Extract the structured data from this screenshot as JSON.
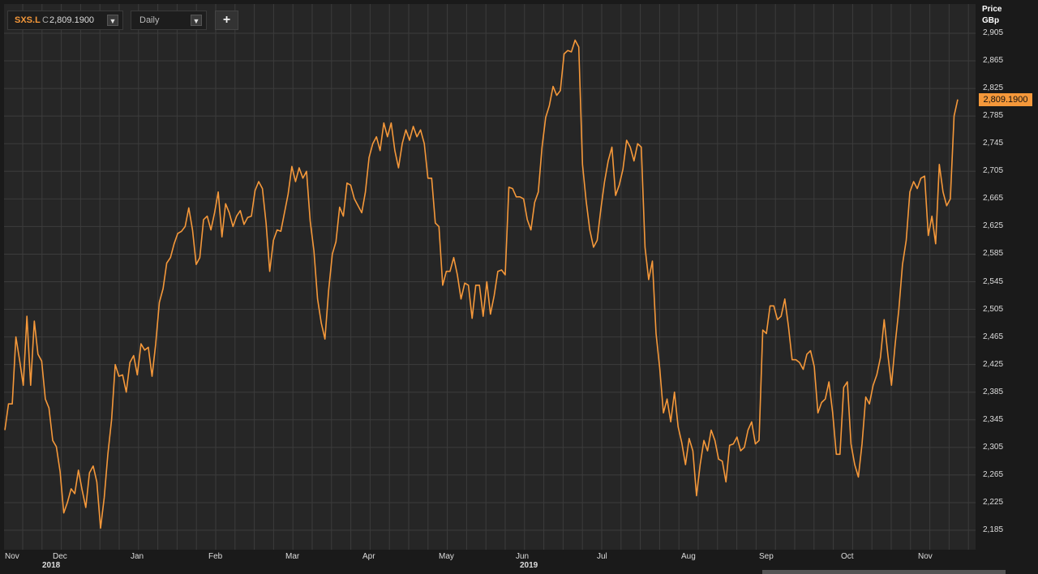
{
  "toolbar": {
    "symbol": "SXS.L",
    "close_prefix": "C",
    "last_value": "2,809.1900",
    "period": "Daily",
    "add_label": "+"
  },
  "axis": {
    "price_label": "Price",
    "unit_label": "GBp",
    "last_price_tag": "2,809.1900"
  },
  "colors": {
    "line": "#f5983a",
    "background": "#262626",
    "grid": "#3c3c3c"
  },
  "icons": {
    "dropdown": "triangle-down-icon",
    "add": "plus-icon"
  },
  "chart_data": {
    "type": "line",
    "title": "",
    "xlabel": "",
    "ylabel": "Price GBp",
    "ylim": [
      2165,
      2925
    ],
    "y_ticks": [
      "2,185",
      "2,225",
      "2,265",
      "2,305",
      "2,345",
      "2,385",
      "2,425",
      "2,465",
      "2,505",
      "2,545",
      "2,585",
      "2,625",
      "2,665",
      "2,705",
      "2,745",
      "2,785",
      "2,825",
      "2,865",
      "2,905"
    ],
    "x_ticks": [
      "Nov",
      "Dec",
      "Jan",
      "Feb",
      "Mar",
      "Apr",
      "May",
      "Jun",
      "Jul",
      "Aug",
      "Sep",
      "Oct",
      "Nov"
    ],
    "year_labels": [
      "2018",
      "2019"
    ],
    "grid": true,
    "series": [
      {
        "values": [
          2330,
          2368,
          2368,
          2465,
          2432,
          2395,
          2495,
          2395,
          2488,
          2440,
          2430,
          2375,
          2362,
          2315,
          2306,
          2270,
          2210,
          2225,
          2245,
          2238,
          2272,
          2243,
          2218,
          2268,
          2278,
          2255,
          2188,
          2232,
          2295,
          2345,
          2425,
          2408,
          2410,
          2385,
          2428,
          2438,
          2410,
          2455,
          2446,
          2450,
          2408,
          2455,
          2515,
          2535,
          2572,
          2580,
          2600,
          2615,
          2618,
          2625,
          2652,
          2620,
          2570,
          2580,
          2635,
          2640,
          2620,
          2645,
          2675,
          2610,
          2658,
          2645,
          2625,
          2640,
          2648,
          2628,
          2638,
          2640,
          2677,
          2690,
          2680,
          2630,
          2560,
          2605,
          2620,
          2618,
          2645,
          2672,
          2712,
          2690,
          2710,
          2695,
          2705,
          2633,
          2590,
          2520,
          2485,
          2462,
          2532,
          2585,
          2603,
          2653,
          2640,
          2688,
          2685,
          2665,
          2655,
          2645,
          2675,
          2725,
          2745,
          2755,
          2735,
          2775,
          2755,
          2775,
          2735,
          2710,
          2745,
          2765,
          2750,
          2770,
          2755,
          2765,
          2745,
          2695,
          2695,
          2630,
          2625,
          2540,
          2560,
          2560,
          2580,
          2555,
          2520,
          2543,
          2540,
          2492,
          2540,
          2540,
          2495,
          2545,
          2498,
          2525,
          2560,
          2562,
          2555,
          2682,
          2680,
          2668,
          2668,
          2665,
          2635,
          2620,
          2660,
          2675,
          2740,
          2783,
          2800,
          2828,
          2815,
          2822,
          2875,
          2880,
          2878,
          2895,
          2885,
          2715,
          2662,
          2620,
          2595,
          2605,
          2650,
          2690,
          2720,
          2740,
          2670,
          2685,
          2708,
          2750,
          2740,
          2720,
          2745,
          2740,
          2595,
          2548,
          2575,
          2470,
          2420,
          2355,
          2375,
          2342,
          2385,
          2335,
          2312,
          2280,
          2318,
          2300,
          2235,
          2280,
          2315,
          2300,
          2330,
          2315,
          2288,
          2285,
          2255,
          2308,
          2310,
          2320,
          2300,
          2305,
          2330,
          2342,
          2310,
          2315,
          2475,
          2470,
          2510,
          2510,
          2490,
          2495,
          2520,
          2480,
          2432,
          2432,
          2428,
          2418,
          2440,
          2445,
          2422,
          2355,
          2370,
          2375,
          2400,
          2355,
          2295,
          2295,
          2392,
          2400,
          2310,
          2280,
          2262,
          2310,
          2378,
          2368,
          2395,
          2410,
          2435,
          2490,
          2440,
          2395,
          2455,
          2505,
          2570,
          2605,
          2675,
          2690,
          2680,
          2695,
          2698,
          2612,
          2640,
          2600,
          2715,
          2675,
          2655,
          2665,
          2785,
          2809
        ]
      }
    ]
  }
}
